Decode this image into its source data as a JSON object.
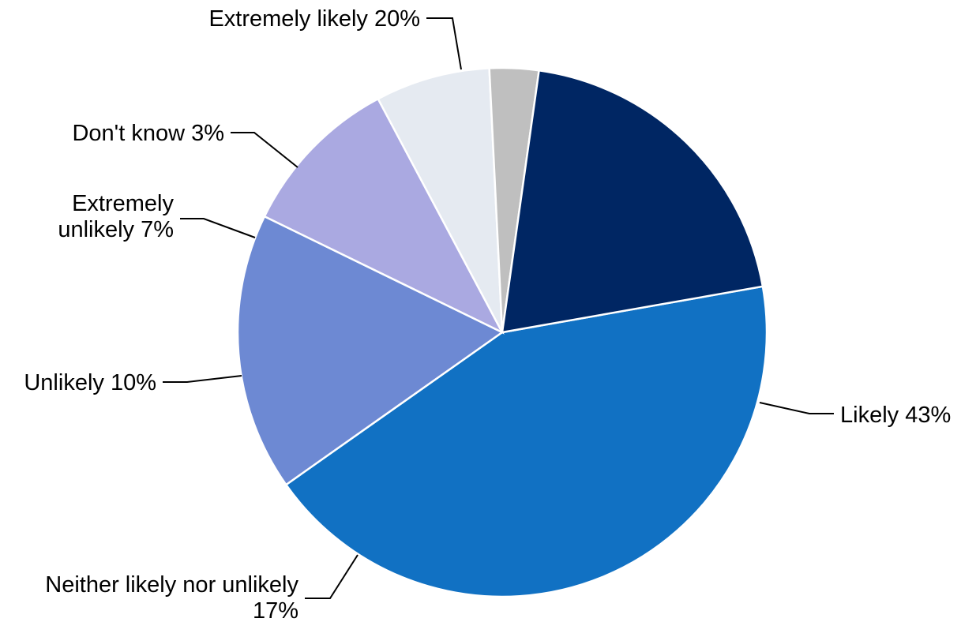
{
  "chart_data": {
    "type": "pie",
    "title": "",
    "start_angle_deg": 80,
    "direction": "clockwise",
    "slices": [
      {
        "label": "Likely",
        "value": 43,
        "value_label": "43%",
        "color": "#1171C3"
      },
      {
        "label": "Neither likely nor unlikely",
        "value": 17,
        "value_label": "17%",
        "color": "#6D89D3"
      },
      {
        "label": "Unlikely",
        "value": 10,
        "value_label": "10%",
        "color": "#AAA9E1"
      },
      {
        "label": "Extremely unlikely",
        "value": 7,
        "value_label": "7%",
        "color": "#E5EAF1"
      },
      {
        "label": "Don't know",
        "value": 3,
        "value_label": "3%",
        "color": "#BFBFBF"
      },
      {
        "label": "Extremely likely",
        "value": 20,
        "value_label": "20%",
        "color": "#002663"
      }
    ],
    "labels": [
      {
        "lines": [
          "Likely 43%"
        ]
      },
      {
        "lines": [
          "Neither likely nor unlikely",
          "17%"
        ]
      },
      {
        "lines": [
          "Unlikely 10%"
        ]
      },
      {
        "lines": [
          "Extremely",
          "unlikely 7%"
        ]
      },
      {
        "lines": [
          "Don't know 3%"
        ]
      },
      {
        "lines": [
          "Extremely likely 20%"
        ]
      }
    ]
  }
}
